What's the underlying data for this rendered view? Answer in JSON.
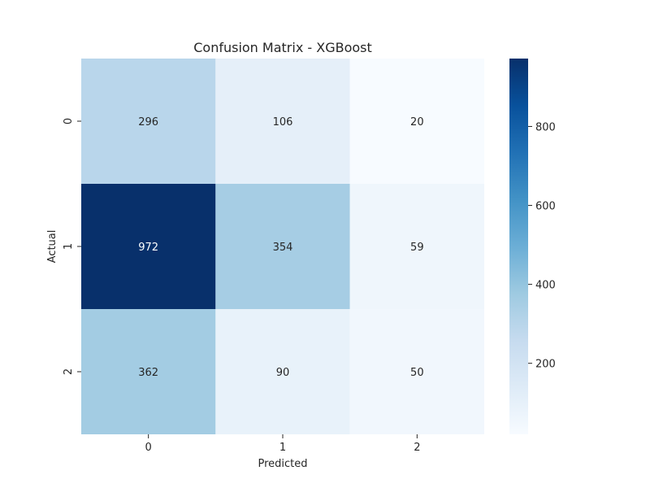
{
  "chart_data": {
    "type": "heatmap",
    "title": "Confusion Matrix - XGBoost",
    "xlabel": "Predicted",
    "ylabel": "Actual",
    "x_categories": [
      "0",
      "1",
      "2"
    ],
    "y_categories": [
      "0",
      "1",
      "2"
    ],
    "values": [
      [
        296,
        106,
        20
      ],
      [
        972,
        354,
        59
      ],
      [
        362,
        90,
        50
      ]
    ],
    "colormap": "Blues",
    "color_range": [
      20,
      972
    ],
    "colorbar_ticks": [
      200,
      400,
      600,
      800
    ],
    "colorbar_tick_labels": [
      "200",
      "400",
      "600",
      "800"
    ]
  }
}
